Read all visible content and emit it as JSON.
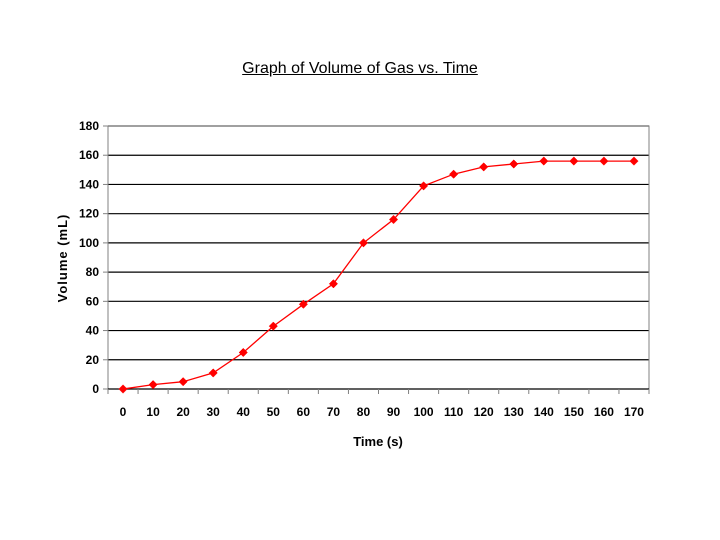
{
  "chart_data": {
    "type": "line",
    "title": "Graph of Volume of Gas vs. Time",
    "xlabel": "Time (s)",
    "ylabel": "Volume (mL)",
    "x": [
      0,
      10,
      20,
      30,
      40,
      50,
      60,
      70,
      80,
      90,
      100,
      110,
      120,
      130,
      140,
      150,
      160,
      170
    ],
    "series": [
      {
        "name": "Volume",
        "values": [
          0,
          3,
          5,
          11,
          25,
          43,
          58,
          72,
          100,
          116,
          139,
          147,
          152,
          154,
          156,
          156,
          156,
          156
        ]
      }
    ],
    "xticks": [
      "0",
      "10",
      "20",
      "30",
      "40",
      "50",
      "60",
      "70",
      "80",
      "90",
      "100",
      "110",
      "120",
      "130",
      "140",
      "150",
      "160",
      "170"
    ],
    "yticks": [
      "0",
      "20",
      "40",
      "60",
      "80",
      "100",
      "120",
      "140",
      "160",
      "180"
    ],
    "ylim": [
      0,
      180
    ],
    "grid": true,
    "legend": "none",
    "colors": {
      "series": "#ff0000",
      "grid": "#000000",
      "axis": "#808080"
    }
  }
}
